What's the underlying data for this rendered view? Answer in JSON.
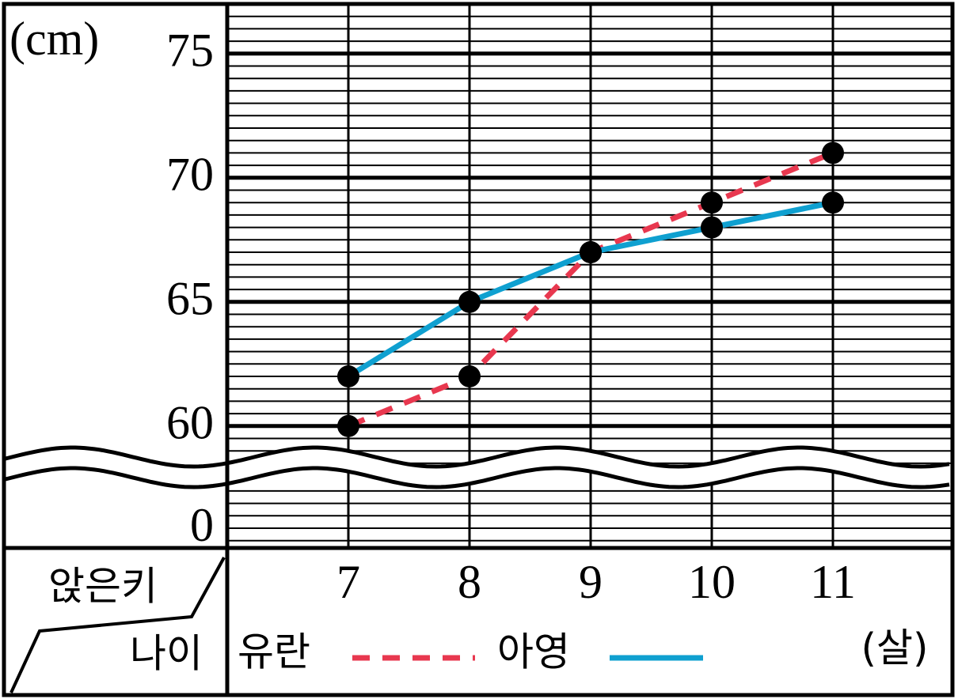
{
  "chart_data": {
    "type": "line",
    "y_unit": "(cm)",
    "x_unit": "(살)",
    "header_top": "앉은키",
    "header_bottom": "나이",
    "x": [
      7,
      8,
      9,
      10,
      11
    ],
    "xlim": [
      6,
      12
    ],
    "xticks": [
      7,
      8,
      9,
      10,
      11
    ],
    "ylim": [
      0,
      77
    ],
    "yticks": [
      0,
      60,
      65,
      70,
      75
    ],
    "axis_break": true,
    "grid": true,
    "markers": true,
    "series": [
      {
        "name": "유란",
        "color": "#e8384f",
        "dash": true,
        "values": [
          60,
          62,
          67,
          69,
          71
        ]
      },
      {
        "name": "아영",
        "color": "#0fa0d0",
        "dash": false,
        "values": [
          62,
          65,
          67,
          68,
          69
        ]
      }
    ]
  }
}
